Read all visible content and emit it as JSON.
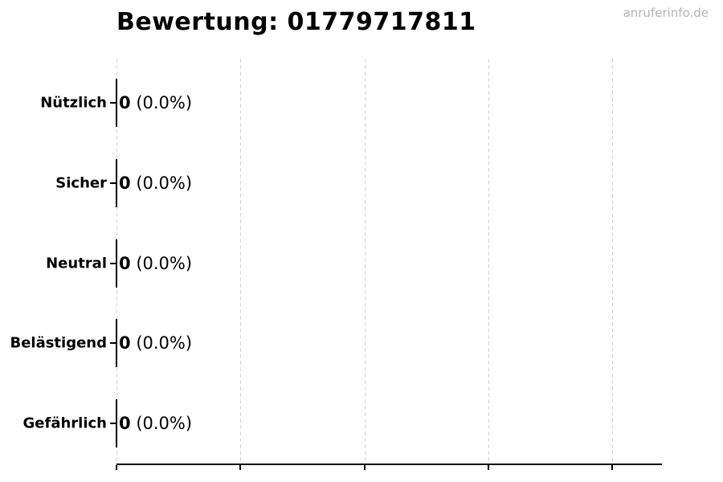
{
  "watermark": {
    "text": "anruferinfo.de",
    "color": "#b3b3b3"
  },
  "chart_data": {
    "type": "bar",
    "orientation": "horizontal",
    "title": "Bewertung: 01779717811",
    "categories": [
      "Nützlich",
      "Sicher",
      "Neutral",
      "Belästigend",
      "Gefährlich"
    ],
    "values": [
      0,
      0,
      0,
      0,
      0
    ],
    "percentages": [
      0.0,
      0.0,
      0.0,
      0.0,
      0.0
    ],
    "bar_labels": [
      {
        "count": "0",
        "pct": "(0.0%)"
      },
      {
        "count": "0",
        "pct": "(0.0%)"
      },
      {
        "count": "0",
        "pct": "(0.0%)"
      },
      {
        "count": "0",
        "pct": "(0.0%)"
      },
      {
        "count": "0",
        "pct": "(0.0%)"
      }
    ],
    "xlabel": "",
    "ylabel": "",
    "xlim": [
      0,
      4.4
    ],
    "x_tick_labels": [],
    "x_gridline_count": 5,
    "grid": {
      "axis": "x",
      "style": "dashed",
      "color": "#d4d4d4"
    },
    "legend": "none",
    "axis_color": "#000000",
    "bar_edge_color": "#000000",
    "text_color": "#000000"
  }
}
